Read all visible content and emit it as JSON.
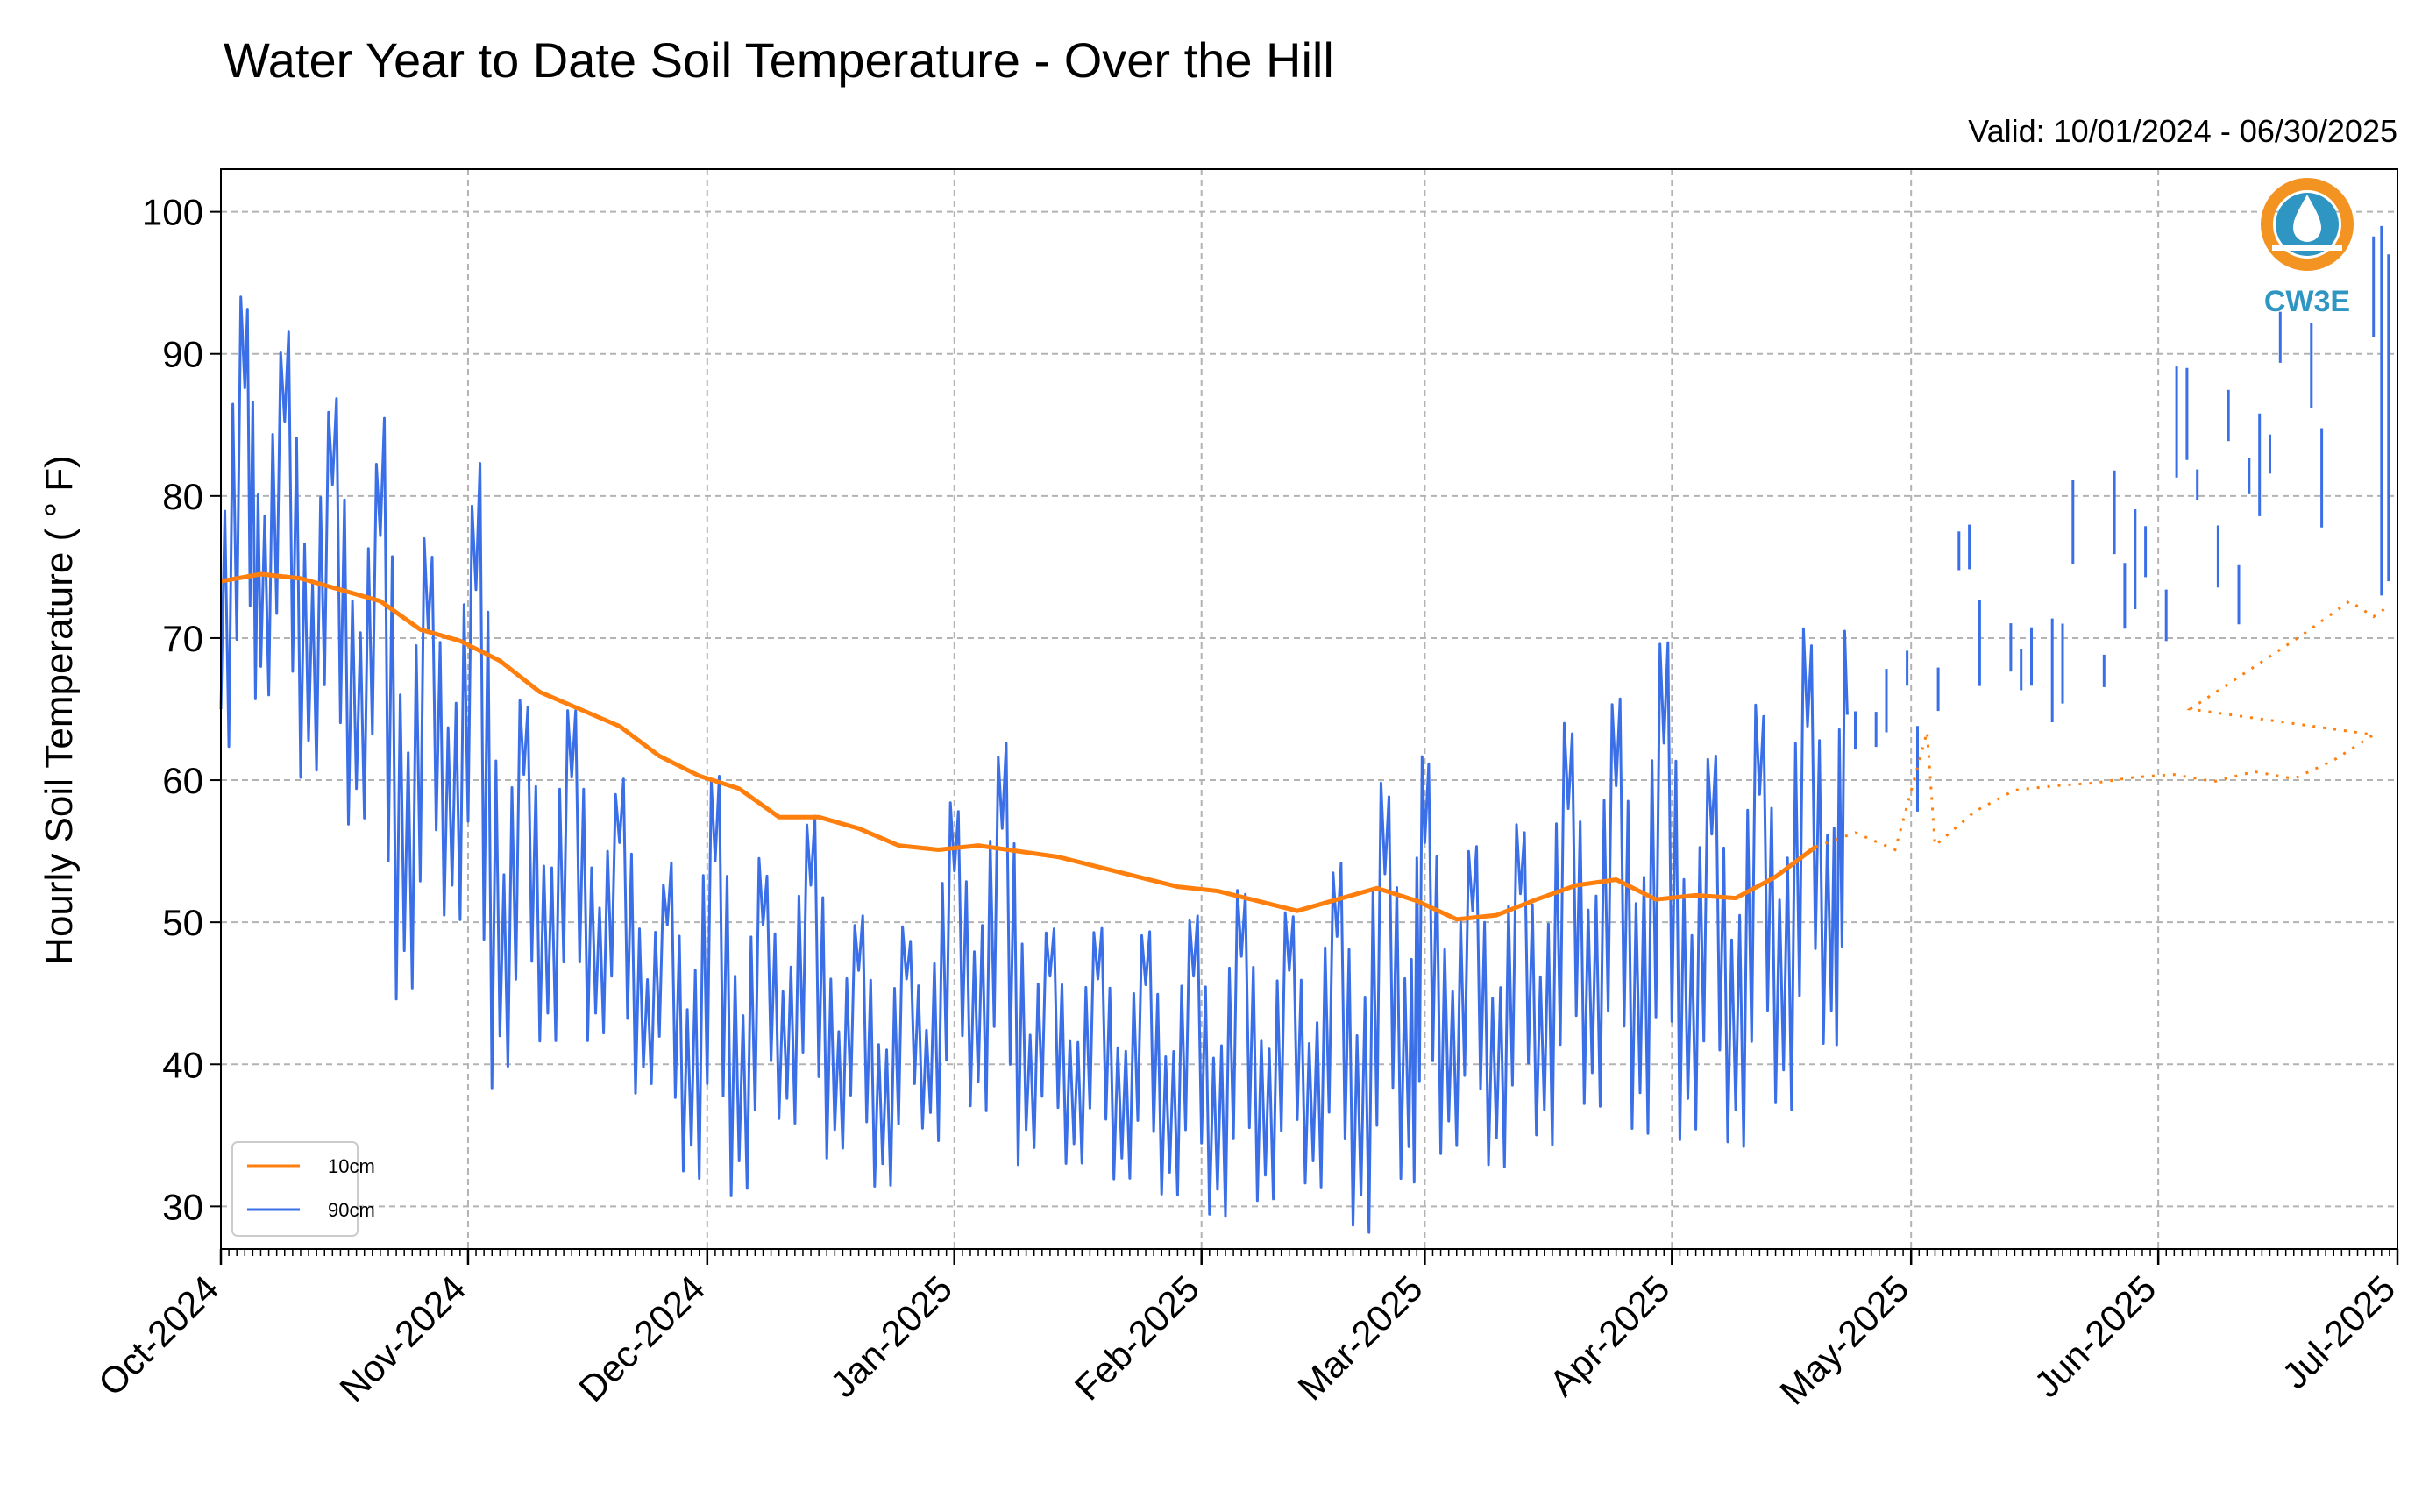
{
  "chart_data": {
    "type": "line",
    "title": "Water Year to Date Soil Temperature - Over the Hill",
    "subtitle": "Valid: 10/01/2024 - 06/30/2025",
    "xlabel": "",
    "ylabel": "Hourly Soil Temperature ( ° F)",
    "x_start": "2024-10-01",
    "x_end": "2025-07-01",
    "ylim": [
      27,
      103
    ],
    "yticks": [
      30,
      40,
      50,
      60,
      70,
      80,
      90,
      100
    ],
    "xticks": [
      {
        "label": "Oct-2024",
        "date": "2024-10-01"
      },
      {
        "label": "Nov-2024",
        "date": "2024-11-01"
      },
      {
        "label": "Dec-2024",
        "date": "2024-12-01"
      },
      {
        "label": "Jan-2025",
        "date": "2025-01-01"
      },
      {
        "label": "Feb-2025",
        "date": "2025-02-01"
      },
      {
        "label": "Mar-2025",
        "date": "2025-03-01"
      },
      {
        "label": "Apr-2025",
        "date": "2025-04-01"
      },
      {
        "label": "May-2025",
        "date": "2025-05-01"
      },
      {
        "label": "Jun-2025",
        "date": "2025-06-01"
      },
      {
        "label": "Jul-2025",
        "date": "2025-07-01"
      }
    ],
    "grid": true,
    "legend_position": "lower-left",
    "series": [
      {
        "name": "10cm",
        "color": "#ff7f0e",
        "style": "continuous-then-dotted",
        "points": [
          [
            "2024-10-01",
            74.0
          ],
          [
            "2024-10-06",
            74.5
          ],
          [
            "2024-10-11",
            74.2
          ],
          [
            "2024-10-16",
            73.4
          ],
          [
            "2024-10-21",
            72.6
          ],
          [
            "2024-10-26",
            70.6
          ],
          [
            "2024-10-31",
            69.8
          ],
          [
            "2024-11-05",
            68.4
          ],
          [
            "2024-11-10",
            66.2
          ],
          [
            "2024-11-15",
            65.0
          ],
          [
            "2024-11-20",
            63.8
          ],
          [
            "2024-11-25",
            61.7
          ],
          [
            "2024-11-30",
            60.3
          ],
          [
            "2024-12-05",
            59.4
          ],
          [
            "2024-12-10",
            57.4
          ],
          [
            "2024-12-15",
            57.4
          ],
          [
            "2024-12-20",
            56.6
          ],
          [
            "2024-12-25",
            55.4
          ],
          [
            "2024-12-30",
            55.1
          ],
          [
            "2025-01-04",
            55.4
          ],
          [
            "2025-01-09",
            55.0
          ],
          [
            "2025-01-14",
            54.6
          ],
          [
            "2025-01-19",
            53.9
          ],
          [
            "2025-01-24",
            53.2
          ],
          [
            "2025-01-29",
            52.5
          ],
          [
            "2025-02-03",
            52.2
          ],
          [
            "2025-02-08",
            51.5
          ],
          [
            "2025-02-13",
            50.8
          ],
          [
            "2025-02-18",
            51.6
          ],
          [
            "2025-02-23",
            52.4
          ],
          [
            "2025-02-28",
            51.5
          ],
          [
            "2025-03-05",
            50.2
          ],
          [
            "2025-03-10",
            50.5
          ],
          [
            "2025-03-15",
            51.6
          ],
          [
            "2025-03-20",
            52.6
          ],
          [
            "2025-03-25",
            53.0
          ],
          [
            "2025-03-30",
            51.6
          ],
          [
            "2025-04-04",
            51.9
          ],
          [
            "2025-04-09",
            51.7
          ],
          [
            "2025-04-14",
            53.2
          ],
          [
            "2025-04-19",
            55.3
          ],
          [
            "2025-04-24",
            56.3
          ],
          [
            "2025-04-29",
            55.1
          ],
          [
            "2025-05-04",
            55.4
          ],
          [
            "2025-05-09",
            57.8
          ],
          [
            "2025-05-14",
            59.3
          ],
          [
            "2025-05-19",
            59.6
          ],
          [
            "2025-05-24",
            59.8
          ],
          [
            "2025-05-29",
            60.2
          ],
          [
            "2025-06-03",
            60.4
          ],
          [
            "2025-06-08",
            59.9
          ],
          [
            "2025-06-13",
            60.6
          ],
          [
            "2025-06-18",
            60.1
          ],
          [
            "2025-06-23",
            61.4
          ],
          [
            "2025-06-28",
            63.2
          ],
          [
            "2025-05-03",
            63.4
          ]
        ]
      },
      {
        "name": "90cm",
        "color": "#3a6fe8",
        "style": "diurnal-then-gappy",
        "points": [
          [
            "2024-10-01",
            65.0
          ],
          [
            "2024-10-04",
            87.6
          ],
          [
            "2024-10-06",
            68.0
          ],
          [
            "2024-10-09",
            85.2
          ],
          [
            "2024-10-12",
            62.8
          ],
          [
            "2024-10-15",
            80.8
          ],
          [
            "2024-10-18",
            59.4
          ],
          [
            "2024-10-21",
            77.2
          ],
          [
            "2024-10-24",
            48.0
          ],
          [
            "2024-10-27",
            70.6
          ],
          [
            "2024-10-30",
            52.6
          ],
          [
            "2024-11-02",
            73.4
          ],
          [
            "2024-11-05",
            42.0
          ],
          [
            "2024-11-08",
            60.4
          ],
          [
            "2024-11-11",
            43.6
          ],
          [
            "2024-11-14",
            60.2
          ],
          [
            "2024-11-17",
            43.6
          ],
          [
            "2024-11-20",
            55.6
          ],
          [
            "2024-11-23",
            39.8
          ],
          [
            "2024-11-26",
            49.8
          ],
          [
            "2024-11-29",
            34.3
          ],
          [
            "2024-12-02",
            54.3
          ],
          [
            "2024-12-05",
            33.2
          ],
          [
            "2024-12-08",
            49.8
          ],
          [
            "2024-12-11",
            37.6
          ],
          [
            "2024-12-14",
            52.6
          ],
          [
            "2024-12-17",
            35.4
          ],
          [
            "2024-12-20",
            46.6
          ],
          [
            "2024-12-23",
            33.0
          ],
          [
            "2024-12-26",
            46.0
          ],
          [
            "2024-12-29",
            36.6
          ],
          [
            "2025-01-01",
            53.6
          ],
          [
            "2025-01-04",
            38.8
          ],
          [
            "2025-01-07",
            56.6
          ],
          [
            "2025-01-10",
            35.4
          ],
          [
            "2025-01-13",
            46.2
          ],
          [
            "2025-01-16",
            34.4
          ],
          [
            "2025-01-19",
            46.0
          ],
          [
            "2025-01-22",
            33.4
          ],
          [
            "2025-01-25",
            45.6
          ],
          [
            "2025-01-28",
            32.4
          ],
          [
            "2025-01-31",
            46.2
          ],
          [
            "2025-02-03",
            31.2
          ],
          [
            "2025-02-06",
            47.6
          ],
          [
            "2025-02-09",
            32.2
          ],
          [
            "2025-02-12",
            46.6
          ],
          [
            "2025-02-15",
            33.2
          ],
          [
            "2025-02-18",
            49.0
          ],
          [
            "2025-02-21",
            30.8
          ],
          [
            "2025-02-24",
            53.4
          ],
          [
            "2025-02-27",
            34.2
          ],
          [
            "2025-03-01",
            55.6
          ],
          [
            "2025-03-04",
            36.0
          ],
          [
            "2025-03-07",
            50.8
          ],
          [
            "2025-03-10",
            34.8
          ],
          [
            "2025-03-13",
            52.0
          ],
          [
            "2025-03-16",
            36.8
          ],
          [
            "2025-03-19",
            58.0
          ],
          [
            "2025-03-22",
            39.4
          ],
          [
            "2025-03-25",
            59.6
          ],
          [
            "2025-03-28",
            38.0
          ],
          [
            "2025-03-31",
            62.6
          ],
          [
            "2025-04-03",
            37.6
          ],
          [
            "2025-04-06",
            56.2
          ],
          [
            "2025-04-09",
            36.8
          ],
          [
            "2025-04-12",
            59.0
          ],
          [
            "2025-04-15",
            39.6
          ],
          [
            "2025-04-18",
            63.8
          ],
          [
            "2025-04-21",
            43.8
          ],
          [
            "2025-04-23",
            64.6
          ]
        ]
      }
    ],
    "legend": [
      {
        "label": "10cm",
        "color": "#ff7f0e"
      },
      {
        "label": "90cm",
        "color": "#3a6fe8"
      }
    ]
  },
  "logo": {
    "text": "CW3E",
    "ring_color": "#f39322",
    "drop_color": "#2f95c2"
  }
}
